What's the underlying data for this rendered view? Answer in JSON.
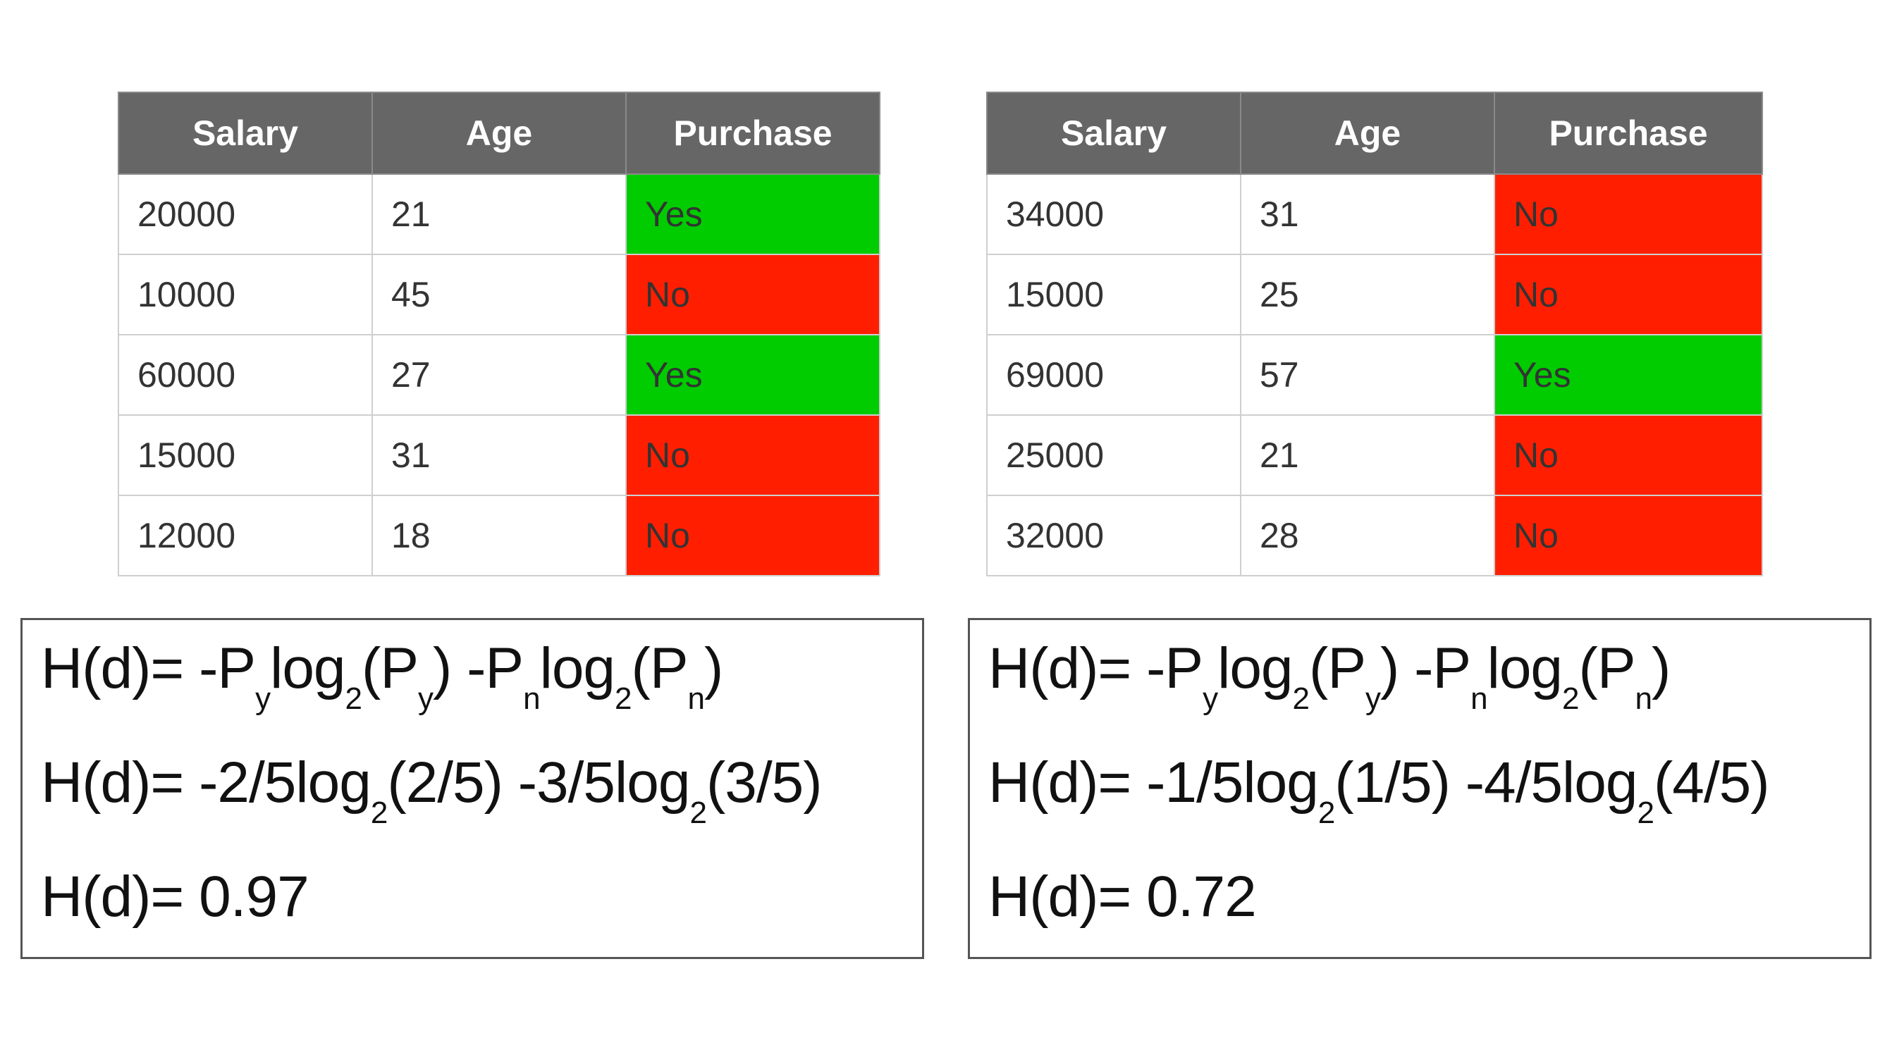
{
  "tables": [
    {
      "headers": [
        "Salary",
        "Age",
        "Purchase"
      ],
      "rows": [
        {
          "salary": "20000",
          "age": "21",
          "purchase": "Yes"
        },
        {
          "salary": "10000",
          "age": "45",
          "purchase": "No"
        },
        {
          "salary": "60000",
          "age": "27",
          "purchase": "Yes"
        },
        {
          "salary": "15000",
          "age": "31",
          "purchase": "No"
        },
        {
          "salary": "12000",
          "age": "18",
          "purchase": "No"
        }
      ]
    },
    {
      "headers": [
        "Salary",
        "Age",
        "Purchase"
      ],
      "rows": [
        {
          "salary": "34000",
          "age": "31",
          "purchase": "No"
        },
        {
          "salary": "15000",
          "age": "25",
          "purchase": "No"
        },
        {
          "salary": "69000",
          "age": "57",
          "purchase": "Yes"
        },
        {
          "salary": "25000",
          "age": "21",
          "purchase": "No"
        },
        {
          "salary": "32000",
          "age": "28",
          "purchase": "No"
        }
      ]
    }
  ],
  "formulas": [
    {
      "general": {
        "p1": "H(d)= -P",
        "s1": "y",
        "p2": "log",
        "s2": "2",
        "p3": "(P",
        "s3": "y",
        "p4": ") -P",
        "s4": "n",
        "p5": "log",
        "s5": "2",
        "p6": "(P",
        "s6": "n",
        "p7": ")"
      },
      "substituted": {
        "p1": "H(d)= -2/5log",
        "s1": "2",
        "p2": "(2/5) -3/5log",
        "s2": "2",
        "p3": "(3/5)"
      },
      "result": "H(d)= 0.97"
    },
    {
      "general": {
        "p1": "H(d)= -P",
        "s1": "y",
        "p2": "log",
        "s2": "2",
        "p3": "(P",
        "s3": "y",
        "p4": ") -P",
        "s4": "n",
        "p5": "log",
        "s5": "2",
        "p6": "(P",
        "s6": "n",
        "p7": ")"
      },
      "substituted": {
        "p1": "H(d)= -1/5log",
        "s1": "2",
        "p2": "(1/5) -4/5log",
        "s2": "2",
        "p3": "(4/5)"
      },
      "result": "H(d)= 0.72"
    }
  ],
  "colors": {
    "header_bg": "#666666",
    "yes_bg": "#00cc00",
    "no_bg": "#ff1f00"
  }
}
